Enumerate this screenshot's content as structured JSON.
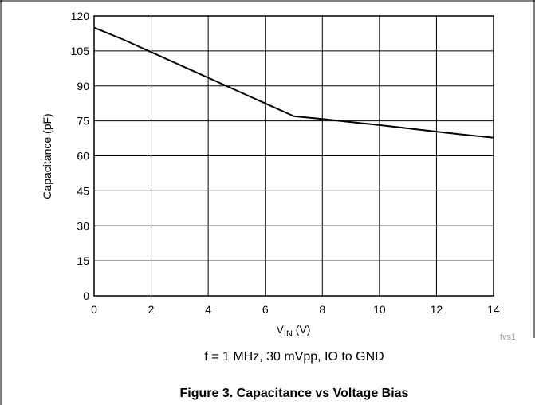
{
  "chart_data": {
    "type": "line",
    "xlabel": "V",
    "xlabel_sub": "IN",
    "xlabel_unit": " (V)",
    "ylabel": "Capacitance (pF)",
    "xlim": [
      0,
      14
    ],
    "ylim": [
      0,
      120
    ],
    "x_ticks": [
      0,
      2,
      4,
      6,
      8,
      10,
      12,
      14
    ],
    "y_ticks": [
      0,
      15,
      30,
      45,
      60,
      75,
      90,
      105,
      120
    ],
    "grid": true,
    "series": [
      {
        "x": [
          0,
          1,
          2,
          3,
          4,
          5,
          6,
          7,
          8,
          9,
          10,
          11,
          12,
          13,
          14
        ],
        "y": [
          115,
          110,
          104.5,
          99,
          93.5,
          88,
          82.5,
          77,
          75.8,
          74.5,
          73.2,
          71.8,
          70.4,
          69,
          67.8
        ],
        "color": "#000000"
      }
    ],
    "annotation": "f = 1 MHz, 30 mVpp, IO to GND",
    "watermark": "tvs1",
    "caption": "Figure 3. Capacitance vs Voltage Bias"
  }
}
